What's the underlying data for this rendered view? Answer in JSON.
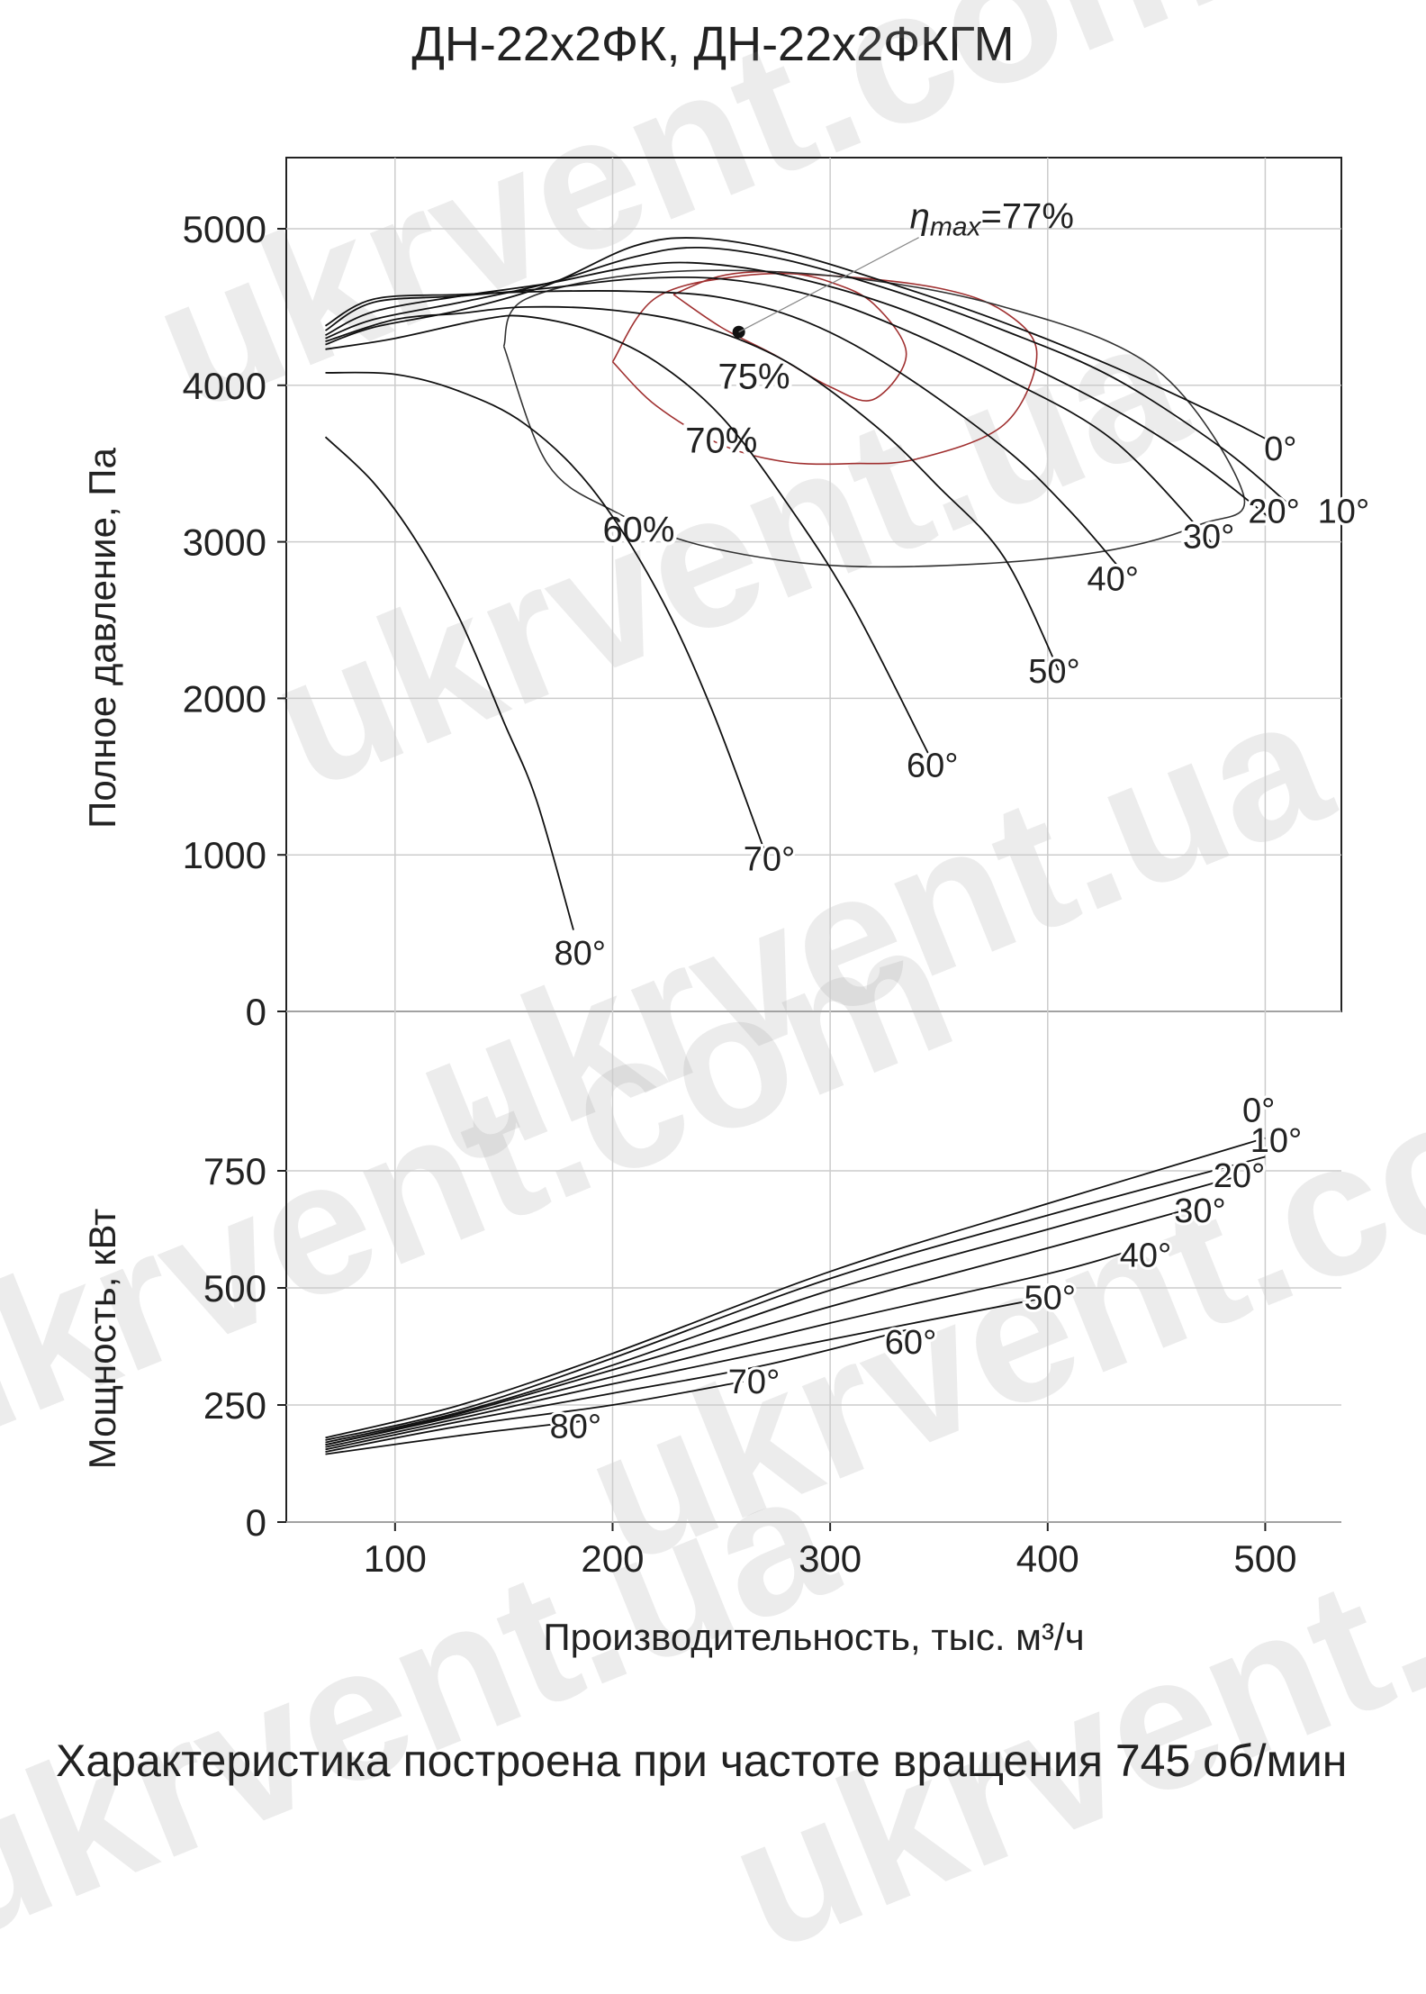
{
  "title": "ДН-22х2ФК, ДН-22х2ФКГМ",
  "footnote": "Характеристика построена при частоте вращения 745 об/мин",
  "watermark": [
    "ukrvent.com",
    "ukrvent.ua"
  ],
  "chart_data": {
    "type": "line",
    "xlabel": "Производительность, тыс. м³/ч",
    "x_ticks": [
      100,
      200,
      300,
      400,
      500
    ],
    "xlim": [
      50,
      535
    ],
    "colors": {
      "curves": "#111111",
      "efficiency_inner": "#a03030",
      "efficiency_outer": "#333333",
      "grid": "#cccccc"
    },
    "pressure": {
      "ylabel": "Полное давление, Па",
      "ylim": [
        0,
        5000
      ],
      "y_ticks": [
        0,
        1000,
        2000,
        3000,
        4000,
        5000
      ],
      "eta_max_label": "η max =77%",
      "eta_max_parts": {
        "eta": "η",
        "sub": "max",
        "value": "=77%"
      },
      "eta_max_point": [
        258,
        4340
      ],
      "series": [
        {
          "name": "0°",
          "x": [
            68,
            90,
            130,
            170,
            210,
            240,
            280,
            330,
            380,
            430,
            480,
            500
          ],
          "y": [
            4260,
            4370,
            4480,
            4640,
            4890,
            4940,
            4850,
            4640,
            4400,
            4120,
            3800,
            3660
          ]
        },
        {
          "name": "10°",
          "x": [
            68,
            90,
            130,
            170,
            210,
            240,
            280,
            330,
            380,
            430,
            480,
            510
          ],
          "y": [
            4300,
            4420,
            4530,
            4650,
            4820,
            4880,
            4800,
            4600,
            4350,
            4050,
            3600,
            3250
          ]
        },
        {
          "name": "20°",
          "x": [
            68,
            90,
            130,
            170,
            210,
            240,
            280,
            330,
            380,
            430,
            470,
            505
          ],
          "y": [
            4320,
            4470,
            4570,
            4650,
            4760,
            4780,
            4700,
            4500,
            4200,
            3850,
            3500,
            3120
          ]
        },
        {
          "name": "30°",
          "x": [
            68,
            90,
            130,
            170,
            210,
            250,
            290,
            330,
            380,
            430,
            475
          ],
          "y": [
            4350,
            4530,
            4570,
            4620,
            4680,
            4680,
            4580,
            4380,
            4050,
            3650,
            3000
          ]
        },
        {
          "name": "40°",
          "x": [
            68,
            90,
            130,
            170,
            210,
            250,
            290,
            330,
            380,
            410,
            435
          ],
          "y": [
            4380,
            4550,
            4580,
            4600,
            4600,
            4560,
            4400,
            4100,
            3600,
            3200,
            2800
          ]
        },
        {
          "name": "50°",
          "x": [
            68,
            100,
            130,
            160,
            200,
            240,
            280,
            320,
            350,
            380,
            405
          ],
          "y": [
            4280,
            4420,
            4460,
            4500,
            4480,
            4380,
            4150,
            3750,
            3350,
            2900,
            2180
          ]
        },
        {
          "name": "60°",
          "x": [
            68,
            100,
            140,
            160,
            190,
            220,
            250,
            280,
            310,
            345
          ],
          "y": [
            4230,
            4300,
            4420,
            4440,
            4350,
            4150,
            3800,
            3250,
            2600,
            1650
          ]
        },
        {
          "name": "70°",
          "x": [
            68,
            100,
            130,
            160,
            190,
            220,
            245,
            270
          ],
          "y": [
            4080,
            4070,
            3960,
            3750,
            3350,
            2700,
            1950,
            1020
          ]
        },
        {
          "name": "80°",
          "x": [
            68,
            90,
            110,
            130,
            150,
            165,
            182
          ],
          "y": [
            3670,
            3380,
            3000,
            2500,
            1850,
            1350,
            520
          ]
        }
      ],
      "series_labels": [
        {
          "text": "0°",
          "x": 507,
          "y": 3520
        },
        {
          "text": "10°",
          "x": 536,
          "y": 3120
        },
        {
          "text": "20°",
          "x": 504,
          "y": 3120
        },
        {
          "text": "30°",
          "x": 474,
          "y": 2960
        },
        {
          "text": "40°",
          "x": 430,
          "y": 2690
        },
        {
          "text": "50°",
          "x": 403,
          "y": 2100
        },
        {
          "text": "60°",
          "x": 347,
          "y": 1500
        },
        {
          "text": "70°",
          "x": 272,
          "y": 900
        },
        {
          "text": "80°",
          "x": 185,
          "y": 300
        }
      ],
      "efficiency": [
        {
          "label": "75%",
          "color": "#a03030",
          "x": [
            228,
            250,
            275,
            300,
            320,
            335,
            320,
            300,
            280,
            260,
            245,
            228
          ],
          "y": [
            4580,
            4370,
            4190,
            3990,
            3910,
            4200,
            4520,
            4660,
            4720,
            4720,
            4680,
            4580
          ],
          "label_x": 265,
          "label_y": 3980
        },
        {
          "label": "70%",
          "color": "#a03030",
          "x": [
            200,
            220,
            250,
            280,
            310,
            340,
            380,
            395,
            380,
            350,
            300,
            260,
            220,
            200
          ],
          "y": [
            4150,
            3870,
            3620,
            3510,
            3500,
            3530,
            3750,
            4200,
            4470,
            4620,
            4700,
            4700,
            4560,
            4150
          ],
          "label_x": 250,
          "label_y": 3570
        },
        {
          "label": "60%",
          "color": "#333333",
          "x": [
            150,
            170,
            200,
            240,
            300,
            370,
            430,
            470,
            490,
            450,
            380,
            300,
            220,
            160,
            150
          ],
          "y": [
            4250,
            3500,
            3200,
            2980,
            2850,
            2860,
            2950,
            3110,
            3300,
            4100,
            4500,
            4700,
            4720,
            4550,
            4250
          ],
          "label_x": 212,
          "label_y": 3000
        }
      ]
    },
    "power": {
      "ylabel": "Мощность, кВт",
      "ylim": [
        0,
        875
      ],
      "y_ticks": [
        0,
        250,
        500,
        750
      ],
      "series": [
        {
          "name": "0°",
          "x": [
            68,
            130,
            200,
            300,
            400,
            500
          ],
          "y": [
            180,
            250,
            360,
            535,
            680,
            820
          ]
        },
        {
          "name": "10°",
          "x": [
            68,
            130,
            200,
            300,
            400,
            500
          ],
          "y": [
            175,
            240,
            350,
            520,
            655,
            780
          ]
        },
        {
          "name": "20°",
          "x": [
            68,
            130,
            200,
            300,
            400,
            485
          ],
          "y": [
            170,
            235,
            335,
            495,
            625,
            735
          ]
        },
        {
          "name": "30°",
          "x": [
            68,
            130,
            200,
            300,
            400,
            470
          ],
          "y": [
            165,
            232,
            325,
            460,
            585,
            675
          ]
        },
        {
          "name": "40°",
          "x": [
            68,
            130,
            200,
            300,
            400,
            435
          ],
          "y": [
            165,
            228,
            310,
            425,
            530,
            575
          ]
        },
        {
          "name": "50°",
          "x": [
            68,
            130,
            200,
            300,
            400
          ],
          "y": [
            160,
            222,
            295,
            390,
            480
          ]
        },
        {
          "name": "60°",
          "x": [
            68,
            130,
            200,
            270,
            335
          ],
          "y": [
            155,
            215,
            275,
            335,
            410
          ]
        },
        {
          "name": "70°",
          "x": [
            68,
            130,
            200,
            260
          ],
          "y": [
            150,
            205,
            250,
            300
          ]
        },
        {
          "name": "80°",
          "x": [
            68,
            130,
            185
          ],
          "y": [
            145,
            185,
            215
          ]
        }
      ],
      "series_labels": [
        {
          "text": "0°",
          "x": 497,
          "y": 855
        },
        {
          "text": "10°",
          "x": 505,
          "y": 790
        },
        {
          "text": "20°",
          "x": 488,
          "y": 715
        },
        {
          "text": "30°",
          "x": 470,
          "y": 640
        },
        {
          "text": "40°",
          "x": 445,
          "y": 545
        },
        {
          "text": "50°",
          "x": 401,
          "y": 455
        },
        {
          "text": "60°",
          "x": 337,
          "y": 360
        },
        {
          "text": "70°",
          "x": 265,
          "y": 275
        },
        {
          "text": "80°",
          "x": 183,
          "y": 180
        }
      ]
    }
  }
}
